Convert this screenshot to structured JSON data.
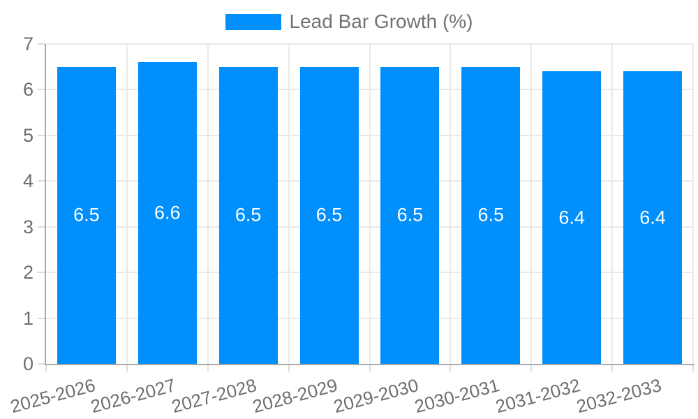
{
  "chart_data": {
    "type": "bar",
    "title": "Lead Bar Growth (%)",
    "legend_position": "top-center",
    "categories": [
      "2025-2026",
      "2026-2027",
      "2027-2028",
      "2028-2029",
      "2029-2030",
      "2030-2031",
      "2031-2032",
      "2032-2033"
    ],
    "series": [
      {
        "name": "Lead Bar Growth (%)",
        "values": [
          6.5,
          6.6,
          6.5,
          6.5,
          6.5,
          6.5,
          6.4,
          6.4
        ]
      }
    ],
    "value_labels": [
      "6.5",
      "6.6",
      "6.5",
      "6.5",
      "6.5",
      "6.5",
      "6.4",
      "6.4"
    ],
    "xlabel": "",
    "ylabel": "",
    "ylim": [
      0,
      7
    ],
    "yticks": [
      0,
      1,
      2,
      3,
      4,
      5,
      6,
      7
    ],
    "grid": true,
    "colors": {
      "bar": "#008FFB",
      "bar_label": "#ffffff",
      "grid": "#e9e9e9",
      "axis": "#a9a9a9",
      "tick": "#dcdcdc",
      "axis_text": "#6e6e6e",
      "legend_text": "#737373"
    }
  }
}
